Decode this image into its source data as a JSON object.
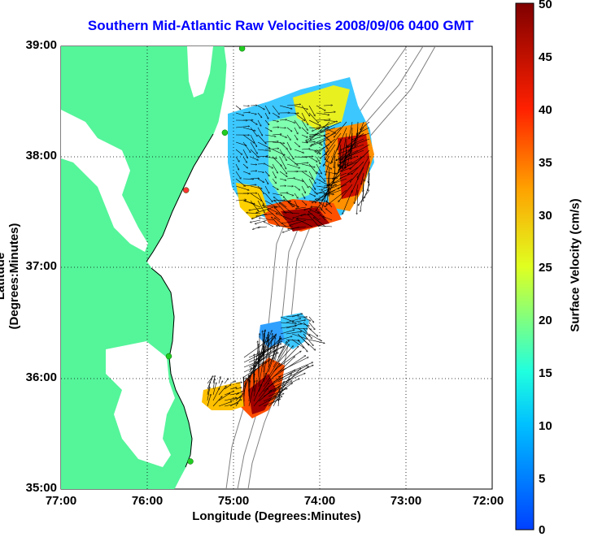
{
  "title": "Southern Mid-Atlantic Raw Velocities 2008/09/06 0400 GMT",
  "x_axis": {
    "label": "Longitude (Degrees:Minutes)",
    "ticks": [
      "77:00",
      "76:00",
      "75:00",
      "74:00",
      "73:00",
      "72:00"
    ]
  },
  "y_axis": {
    "label": "Latitude (Degrees:Minutes)",
    "ticks": [
      "39:00",
      "38:00",
      "37:00",
      "36:00",
      "35:00"
    ]
  },
  "colorbar": {
    "label": "Surface Velocity (cm/s)",
    "ticks": [
      "50",
      "45",
      "40",
      "35",
      "30",
      "25",
      "20",
      "15",
      "10",
      "5",
      "0"
    ],
    "min": 0,
    "max": 50,
    "colormap": "jet"
  },
  "colors": {
    "title": "#0000ff",
    "land": "#55f59a",
    "ocean": "#ffffff",
    "bathymetry": "#808080",
    "station_active": "#22cc22",
    "station_inactive": "#ff3333"
  },
  "map_data": {
    "lon_range": [
      -77,
      -72
    ],
    "lat_range": [
      35,
      39
    ],
    "grid": "dotted",
    "stations": [
      {
        "lon": -74.9,
        "lat": 38.98,
        "status": "active"
      },
      {
        "lon": -75.1,
        "lat": 38.22,
        "status": "active"
      },
      {
        "lon": -75.55,
        "lat": 37.7,
        "status": "inactive"
      },
      {
        "lon": -75.75,
        "lat": 36.2,
        "status": "active"
      },
      {
        "lon": -75.5,
        "lat": 35.25,
        "status": "active"
      }
    ],
    "velocity_patches": [
      {
        "lon": -74.6,
        "lat": 38.0,
        "speed": 14
      },
      {
        "lon": -74.3,
        "lat": 38.3,
        "speed": 24
      },
      {
        "lon": -73.8,
        "lat": 37.9,
        "speed": 44
      },
      {
        "lon": -74.1,
        "lat": 37.45,
        "speed": 40
      },
      {
        "lon": -74.6,
        "lat": 37.6,
        "speed": 30
      },
      {
        "lon": -74.2,
        "lat": 36.5,
        "speed": 12
      },
      {
        "lon": -74.6,
        "lat": 36.0,
        "speed": 40
      },
      {
        "lon": -75.0,
        "lat": 35.85,
        "speed": 28
      }
    ]
  }
}
